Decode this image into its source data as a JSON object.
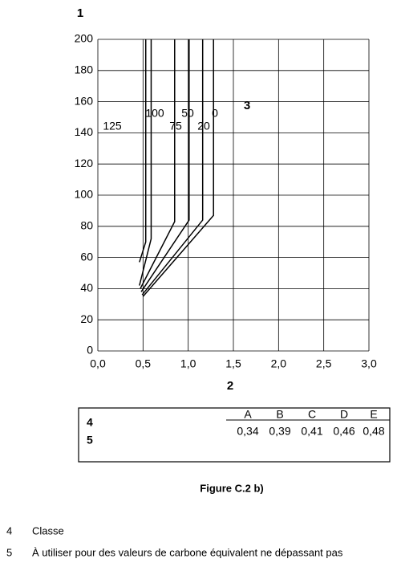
{
  "chart_data": {
    "type": "line",
    "y_label": "1",
    "x_label": "2",
    "annotation": "3",
    "xlim": [
      0,
      3.0
    ],
    "ylim": [
      0,
      200
    ],
    "xticks": [
      {
        "value": 0,
        "label": "0,0"
      },
      {
        "value": 0.5,
        "label": "0,5"
      },
      {
        "value": 1.0,
        "label": "1,0"
      },
      {
        "value": 1.5,
        "label": "1,5"
      },
      {
        "value": 2.0,
        "label": "2,0"
      },
      {
        "value": 2.5,
        "label": "2,5"
      },
      {
        "value": 3.0,
        "label": "3,0"
      }
    ],
    "yticks": [
      0,
      20,
      40,
      60,
      80,
      100,
      120,
      140,
      160,
      180,
      200
    ],
    "grid": true,
    "series": [
      {
        "name": "125",
        "color": "#000000",
        "x": [
          0.46,
          0.53,
          0.53
        ],
        "values": [
          57,
          70,
          200
        ]
      },
      {
        "name": "100",
        "color": "#000000",
        "x": [
          0.46,
          0.59,
          0.59
        ],
        "values": [
          42,
          72,
          200
        ]
      },
      {
        "name": "75",
        "color": "#000000",
        "x": [
          0.47,
          0.85,
          0.85
        ],
        "values": [
          40,
          83,
          200
        ]
      },
      {
        "name": "50",
        "color": "#000000",
        "x": [
          0.48,
          1.01,
          1.01
        ],
        "values": [
          38,
          84,
          200
        ]
      },
      {
        "name": "20",
        "color": "#000000",
        "x": [
          0.49,
          1.16,
          1.16
        ],
        "values": [
          36,
          84,
          200
        ]
      },
      {
        "name": "0",
        "color": "#000000",
        "x": [
          0.5,
          1.28,
          1.28
        ],
        "values": [
          35,
          87,
          200
        ]
      }
    ]
  },
  "table": {
    "header": [
      "A",
      "B",
      "C",
      "D",
      "E"
    ],
    "row_labels": [
      "4",
      "5"
    ],
    "values": [
      "0,34",
      "0,39",
      "0,41",
      "0,46",
      "0,48"
    ]
  },
  "caption": "Figure C.2 b)",
  "legend": [
    {
      "number": "4",
      "text": "Classe"
    },
    {
      "number": "5",
      "text": "À utiliser pour des valeurs de carbone équivalent ne dépassant pas"
    }
  ]
}
